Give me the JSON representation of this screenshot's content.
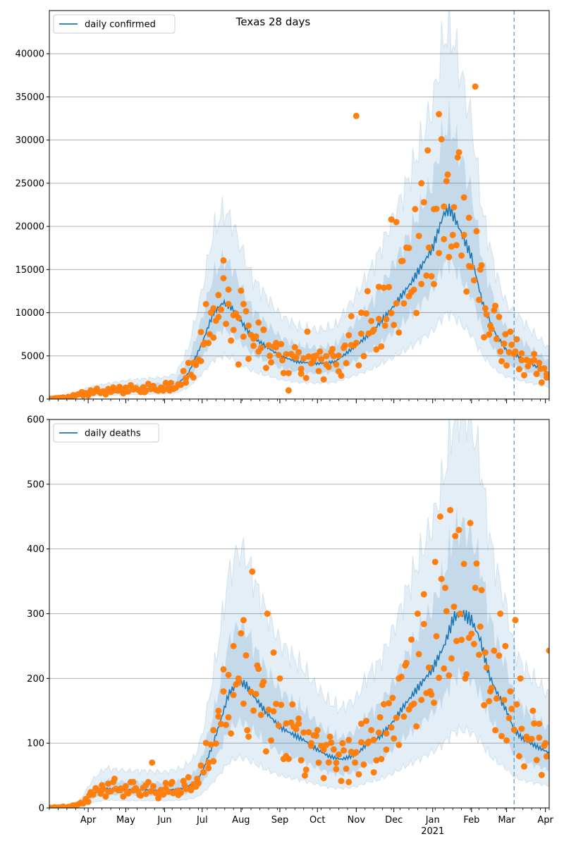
{
  "colors": {
    "line": "#1f77b4",
    "band": "#1f77b4",
    "points": "#ff7f0e",
    "grid": "#b0b0b0",
    "vline": "#1f77b4"
  },
  "x_axis": {
    "start_date": "2020-03-01",
    "end_date": "2021-04-04",
    "month_labels": [
      {
        "date": "2020-04-01",
        "label": "Apr"
      },
      {
        "date": "2020-05-01",
        "label": "May"
      },
      {
        "date": "2020-06-01",
        "label": "Jun"
      },
      {
        "date": "2020-07-01",
        "label": "Jul"
      },
      {
        "date": "2020-08-01",
        "label": "Aug"
      },
      {
        "date": "2020-09-01",
        "label": "Sep"
      },
      {
        "date": "2020-10-01",
        "label": "Oct"
      },
      {
        "date": "2020-11-01",
        "label": "Nov"
      },
      {
        "date": "2020-12-01",
        "label": "Dec"
      },
      {
        "date": "2021-01-01",
        "label": "Jan"
      },
      {
        "date": "2021-02-01",
        "label": "Feb"
      },
      {
        "date": "2021-03-01",
        "label": "Mar"
      },
      {
        "date": "2021-04-01",
        "label": "Apr"
      }
    ],
    "year_label": {
      "date": "2021-01-01",
      "label": "2021"
    },
    "forecast_start": "2021-03-07"
  },
  "chart_data": [
    {
      "type": "line",
      "title": "Texas 28 days",
      "legend": {
        "placement": "top-left",
        "entries": [
          "daily confirmed"
        ]
      },
      "ylim": [
        0,
        45000
      ],
      "yticks": [
        0,
        5000,
        10000,
        15000,
        20000,
        25000,
        30000,
        35000,
        40000
      ],
      "grid": true,
      "series": [
        {
          "name": "daily confirmed",
          "x": [
            "2020-03-01",
            "2020-03-15",
            "2020-04-01",
            "2020-04-15",
            "2020-05-01",
            "2020-05-15",
            "2020-06-01",
            "2020-06-10",
            "2020-06-20",
            "2020-07-01",
            "2020-07-10",
            "2020-07-18",
            "2020-07-25",
            "2020-08-01",
            "2020-08-10",
            "2020-08-20",
            "2020-09-01",
            "2020-09-15",
            "2020-10-01",
            "2020-10-15",
            "2020-11-01",
            "2020-11-15",
            "2020-12-01",
            "2020-12-15",
            "2021-01-01",
            "2021-01-10",
            "2021-01-15",
            "2021-01-20",
            "2021-02-01",
            "2021-02-10",
            "2021-02-20",
            "2021-03-01",
            "2021-03-07",
            "2021-03-20",
            "2021-04-04"
          ],
          "y": [
            0,
            200,
            700,
            900,
            1100,
            1200,
            1300,
            1500,
            3000,
            6500,
            10000,
            11200,
            10500,
            9000,
            7200,
            6200,
            5000,
            4300,
            4100,
            4300,
            6200,
            8000,
            10800,
            13500,
            17500,
            21500,
            22000,
            20500,
            16500,
            11000,
            7600,
            5600,
            5200,
            4100,
            3000
          ]
        }
      ],
      "band_outer_ratio": [
        0.45,
        1.95
      ],
      "band_inner_ratio": [
        0.72,
        1.45
      ],
      "points": {
        "name": "observed",
        "x": [
          "2020-03-05",
          "2020-03-12",
          "2020-03-20",
          "2020-03-27",
          "2020-04-03",
          "2020-04-08",
          "2020-04-14",
          "2020-04-20",
          "2020-04-26",
          "2020-05-02",
          "2020-05-09",
          "2020-05-16",
          "2020-05-23",
          "2020-05-30",
          "2020-06-05",
          "2020-06-12",
          "2020-06-18",
          "2020-06-24",
          "2020-06-30",
          "2020-07-03",
          "2020-07-07",
          "2020-07-10",
          "2020-07-14",
          "2020-07-18",
          "2020-07-22",
          "2020-07-26",
          "2020-07-30",
          "2020-08-03",
          "2020-08-07",
          "2020-08-11",
          "2020-08-15",
          "2020-08-19",
          "2020-08-24",
          "2020-08-29",
          "2020-09-03",
          "2020-09-08",
          "2020-09-13",
          "2020-09-18",
          "2020-09-23",
          "2020-09-28",
          "2020-10-03",
          "2020-10-08",
          "2020-10-13",
          "2020-10-18",
          "2020-10-23",
          "2020-10-28",
          "2020-11-01",
          "2020-11-05",
          "2020-11-10",
          "2020-11-14",
          "2020-11-19",
          "2020-11-24",
          "2020-11-29",
          "2020-12-03",
          "2020-12-08",
          "2020-12-13",
          "2020-12-18",
          "2020-12-23",
          "2020-12-28",
          "2021-01-02",
          "2021-01-06",
          "2021-01-10",
          "2021-01-13",
          "2021-01-17",
          "2021-01-21",
          "2021-01-26",
          "2021-01-30",
          "2021-02-04",
          "2021-02-08",
          "2021-02-12",
          "2021-02-16",
          "2021-02-20",
          "2021-02-24",
          "2021-02-28",
          "2021-03-04",
          "2021-03-08",
          "2021-03-13",
          "2021-03-18",
          "2021-03-23",
          "2021-03-28",
          "2021-04-02"
        ],
        "y": [
          50,
          150,
          400,
          800,
          1000,
          1200,
          700,
          900,
          1400,
          900,
          1200,
          800,
          1500,
          1300,
          1000,
          1700,
          1900,
          2500,
          4400,
          6500,
          7500,
          10500,
          9500,
          14000,
          11000,
          8000,
          4000,
          11000,
          8500,
          7000,
          5500,
          8000,
          5000,
          6000,
          4500,
          1000,
          6000,
          3500,
          7800,
          4500,
          5500,
          4000,
          5800,
          3200,
          6200,
          9600,
          32800,
          10000,
          12500,
          7800,
          13000,
          8500,
          20800,
          20500,
          16000,
          17500,
          22000,
          25000,
          28800,
          22000,
          33000,
          22300,
          26000,
          19000,
          28000,
          19000,
          21000,
          36200,
          15000,
          10500,
          8500,
          10800,
          5500,
          7500,
          7800,
          5500,
          4500,
          3800,
          4500,
          3500,
          2500
        ]
      }
    },
    {
      "type": "line",
      "title": "",
      "legend": {
        "placement": "top-left",
        "entries": [
          "daily deaths"
        ]
      },
      "ylim": [
        0,
        600
      ],
      "yticks": [
        0,
        100,
        200,
        300,
        400,
        500,
        600
      ],
      "grid": true,
      "series": [
        {
          "name": "daily deaths",
          "x": [
            "2020-03-01",
            "2020-03-15",
            "2020-03-25",
            "2020-04-05",
            "2020-04-15",
            "2020-05-01",
            "2020-05-15",
            "2020-06-01",
            "2020-06-15",
            "2020-06-25",
            "2020-07-01",
            "2020-07-08",
            "2020-07-15",
            "2020-07-22",
            "2020-07-30",
            "2020-08-05",
            "2020-08-12",
            "2020-08-20",
            "2020-09-01",
            "2020-09-10",
            "2020-09-20",
            "2020-10-01",
            "2020-10-10",
            "2020-10-20",
            "2020-11-01",
            "2020-11-10",
            "2020-11-20",
            "2020-12-01",
            "2020-12-10",
            "2020-12-20",
            "2021-01-01",
            "2021-01-10",
            "2021-01-18",
            "2021-01-25",
            "2021-02-01",
            "2021-02-08",
            "2021-02-15",
            "2021-02-22",
            "2021-03-01",
            "2021-03-07",
            "2021-03-15",
            "2021-03-25",
            "2021-04-04"
          ],
          "y": [
            0,
            1,
            5,
            22,
            30,
            28,
            28,
            27,
            30,
            38,
            55,
            90,
            130,
            175,
            195,
            190,
            170,
            150,
            125,
            115,
            105,
            90,
            80,
            75,
            82,
            100,
            110,
            135,
            160,
            185,
            215,
            250,
            295,
            300,
            290,
            260,
            205,
            175,
            150,
            120,
            105,
            95,
            85
          ]
        }
      ],
      "band_outer_ratio": [
        0.4,
        2.05
      ],
      "band_inner_ratio": [
        0.68,
        1.45
      ],
      "points": {
        "name": "observed",
        "x": [
          "2020-03-05",
          "2020-03-12",
          "2020-03-19",
          "2020-03-26",
          "2020-04-02",
          "2020-04-07",
          "2020-04-12",
          "2020-04-17",
          "2020-04-22",
          "2020-04-27",
          "2020-05-02",
          "2020-05-07",
          "2020-05-12",
          "2020-05-17",
          "2020-05-22",
          "2020-05-27",
          "2020-06-02",
          "2020-06-07",
          "2020-06-12",
          "2020-06-17",
          "2020-06-22",
          "2020-06-27",
          "2020-07-02",
          "2020-07-06",
          "2020-07-10",
          "2020-07-14",
          "2020-07-18",
          "2020-07-22",
          "2020-07-26",
          "2020-07-30",
          "2020-08-03",
          "2020-08-06",
          "2020-08-10",
          "2020-08-14",
          "2020-08-18",
          "2020-08-22",
          "2020-08-27",
          "2020-09-01",
          "2020-09-06",
          "2020-09-11",
          "2020-09-16",
          "2020-09-21",
          "2020-09-26",
          "2020-10-01",
          "2020-10-06",
          "2020-10-11",
          "2020-10-16",
          "2020-10-21",
          "2020-10-26",
          "2020-10-31",
          "2020-11-05",
          "2020-11-10",
          "2020-11-15",
          "2020-11-20",
          "2020-11-25",
          "2020-11-30",
          "2020-12-05",
          "2020-12-10",
          "2020-12-15",
          "2020-12-20",
          "2020-12-25",
          "2020-12-30",
          "2021-01-03",
          "2021-01-07",
          "2021-01-11",
          "2021-01-15",
          "2021-01-19",
          "2021-01-23",
          "2021-01-27",
          "2021-01-31",
          "2021-02-04",
          "2021-02-08",
          "2021-02-12",
          "2021-02-16",
          "2021-02-20",
          "2021-02-24",
          "2021-02-28",
          "2021-03-04",
          "2021-03-08",
          "2021-03-12",
          "2021-03-17",
          "2021-03-22",
          "2021-03-27",
          "2021-04-01",
          "2021-04-04"
        ],
        "y": [
          1,
          2,
          3,
          8,
          20,
          30,
          35,
          25,
          45,
          30,
          25,
          40,
          20,
          35,
          70,
          15,
          30,
          40,
          20,
          35,
          30,
          45,
          55,
          70,
          120,
          150,
          180,
          140,
          250,
          200,
          290,
          120,
          365,
          220,
          190,
          300,
          240,
          200,
          80,
          160,
          130,
          50,
          100,
          120,
          90,
          110,
          60,
          100,
          40,
          70,
          130,
          100,
          55,
          140,
          90,
          170,
          200,
          220,
          260,
          300,
          330,
          180,
          380,
          450,
          340,
          460,
          420,
          300,
          200,
          440,
          340,
          280,
          240,
          180,
          120,
          300,
          250,
          180,
          290,
          200,
          110,
          150,
          130,
          100,
          243
        ]
      }
    }
  ]
}
